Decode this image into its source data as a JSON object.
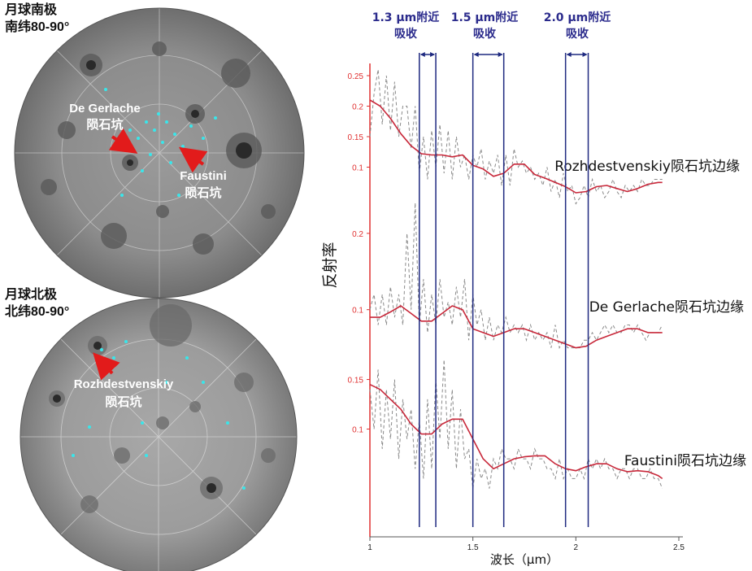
{
  "maps": {
    "south": {
      "caption_line1": "月球南极",
      "caption_line2": "南纬80-90°",
      "crater_a_line1": "De Gerlache",
      "crater_a_line2": "陨石坑",
      "crater_b_line1": "Faustini",
      "crater_b_line2": "陨石坑"
    },
    "north": {
      "caption_line1": "月球北极",
      "caption_line2": "北纬80-90°",
      "crater_line1": "Rozhdestvenskiy",
      "crater_line2": "陨石坑"
    }
  },
  "colors": {
    "axis": "#e03030",
    "smooth_line": "#c8283a",
    "raw_line": "#8a8a8a",
    "band_line": "#1f2a80",
    "band_label": "#2b2b8c",
    "arrow": "#e21b1b",
    "ice": "#39e6ea"
  },
  "absorption_bands": [
    {
      "label_line1": "1.3 μm附近",
      "label_line2": "吸收",
      "x_start": 1.24,
      "x_end": 1.32
    },
    {
      "label_line1": "1.5 μm附近",
      "label_line2": "吸收",
      "x_start": 1.5,
      "x_end": 1.65
    },
    {
      "label_line1": "2.0 μm附近",
      "label_line2": "吸收",
      "x_start": 1.95,
      "x_end": 2.06
    }
  ],
  "chart_data": {
    "type": "line",
    "xlabel": "波长（μm）",
    "ylabel": "反射率",
    "xlim": [
      1,
      2.5
    ],
    "x_ticks": [
      1,
      1.5,
      2,
      2.5
    ],
    "x_tick_labels": [
      "1",
      "1.5",
      "2",
      "2.5"
    ],
    "grid": false,
    "panels": [
      {
        "name": "Rozhdestvenskiy陨石坑边缘",
        "ylim": [
          0.07,
          0.27
        ],
        "y_ticks": [
          0.1,
          0.15,
          0.2,
          0.25
        ],
        "y_tick_labels": [
          "0.1",
          "0.15",
          "0.2",
          "0.25"
        ],
        "smooth": {
          "x": [
            1.0,
            1.05,
            1.1,
            1.15,
            1.2,
            1.25,
            1.3,
            1.35,
            1.4,
            1.45,
            1.5,
            1.55,
            1.6,
            1.65,
            1.7,
            1.75,
            1.8,
            1.85,
            1.9,
            1.95,
            2.0,
            2.05,
            2.1,
            2.15,
            2.2,
            2.25,
            2.3,
            2.35,
            2.4,
            2.42
          ],
          "y": [
            0.21,
            0.2,
            0.18,
            0.155,
            0.135,
            0.122,
            0.12,
            0.12,
            0.117,
            0.12,
            0.103,
            0.097,
            0.085,
            0.09,
            0.105,
            0.105,
            0.088,
            0.082,
            0.075,
            0.068,
            0.058,
            0.06,
            0.068,
            0.07,
            0.065,
            0.06,
            0.065,
            0.072,
            0.075,
            0.075
          ]
        },
        "raw": {
          "x": [
            1.0,
            1.02,
            1.04,
            1.06,
            1.08,
            1.1,
            1.12,
            1.14,
            1.16,
            1.18,
            1.2,
            1.22,
            1.24,
            1.26,
            1.28,
            1.3,
            1.32,
            1.34,
            1.36,
            1.38,
            1.4,
            1.42,
            1.44,
            1.46,
            1.48,
            1.5,
            1.52,
            1.54,
            1.56,
            1.58,
            1.6,
            1.62,
            1.64,
            1.66,
            1.68,
            1.7,
            1.72,
            1.74,
            1.76,
            1.78,
            1.8,
            1.82,
            1.84,
            1.86,
            1.88,
            1.9,
            1.92,
            1.94,
            1.96,
            1.98,
            2.0,
            2.02,
            2.04,
            2.06,
            2.08,
            2.1,
            2.12,
            2.14,
            2.16,
            2.18,
            2.2,
            2.22,
            2.24,
            2.26,
            2.28,
            2.3,
            2.32,
            2.34,
            2.36,
            2.38,
            2.4,
            2.42
          ],
          "y": [
            0.15,
            0.22,
            0.26,
            0.17,
            0.25,
            0.16,
            0.24,
            0.15,
            0.2,
            0.2,
            0.13,
            0.2,
            0.09,
            0.15,
            0.08,
            0.16,
            0.1,
            0.17,
            0.09,
            0.16,
            0.08,
            0.15,
            0.1,
            0.12,
            0.08,
            0.12,
            0.1,
            0.13,
            0.08,
            0.11,
            0.09,
            0.12,
            0.07,
            0.12,
            0.07,
            0.13,
            0.1,
            0.11,
            0.09,
            0.1,
            0.08,
            0.09,
            0.07,
            0.1,
            0.06,
            0.08,
            0.05,
            0.09,
            0.06,
            0.07,
            0.04,
            0.05,
            0.07,
            0.05,
            0.08,
            0.06,
            0.07,
            0.05,
            0.06,
            0.08,
            0.06,
            0.05,
            0.07,
            0.06,
            0.07,
            0.06,
            0.08,
            0.07,
            0.07,
            0.08,
            0.08,
            0.08
          ]
        }
      },
      {
        "name": "De Gerlache陨石坑边缘",
        "ylim": [
          0.04,
          0.25
        ],
        "y_ticks": [
          0.1,
          0.2
        ],
        "y_tick_labels": [
          "0.1",
          "0.2"
        ],
        "smooth": {
          "x": [
            1.0,
            1.05,
            1.1,
            1.15,
            1.2,
            1.25,
            1.3,
            1.35,
            1.4,
            1.45,
            1.5,
            1.55,
            1.6,
            1.65,
            1.7,
            1.75,
            1.8,
            1.85,
            1.9,
            1.95,
            2.0,
            2.05,
            2.1,
            2.15,
            2.2,
            2.25,
            2.3,
            2.35,
            2.4,
            2.42
          ],
          "y": [
            0.09,
            0.09,
            0.097,
            0.105,
            0.095,
            0.085,
            0.085,
            0.095,
            0.105,
            0.1,
            0.075,
            0.07,
            0.065,
            0.07,
            0.075,
            0.075,
            0.07,
            0.065,
            0.06,
            0.055,
            0.05,
            0.052,
            0.06,
            0.065,
            0.07,
            0.075,
            0.075,
            0.07,
            0.07,
            0.07
          ]
        },
        "raw": {
          "x": [
            1.0,
            1.02,
            1.04,
            1.06,
            1.08,
            1.1,
            1.12,
            1.14,
            1.16,
            1.18,
            1.2,
            1.22,
            1.24,
            1.26,
            1.28,
            1.3,
            1.32,
            1.34,
            1.36,
            1.38,
            1.4,
            1.42,
            1.44,
            1.46,
            1.48,
            1.5,
            1.52,
            1.54,
            1.56,
            1.58,
            1.6,
            1.62,
            1.64,
            1.66,
            1.68,
            1.7,
            1.72,
            1.74,
            1.76,
            1.78,
            1.8,
            1.82,
            1.84,
            1.86,
            1.88,
            1.9,
            1.92,
            1.94,
            1.96,
            1.98,
            2.0,
            2.02,
            2.04,
            2.06,
            2.08,
            2.1,
            2.12,
            2.14,
            2.16,
            2.18,
            2.2,
            2.22,
            2.24,
            2.26,
            2.28,
            2.3,
            2.32,
            2.34,
            2.36,
            2.38,
            2.4,
            2.42
          ],
          "y": [
            0.1,
            0.12,
            0.08,
            0.12,
            0.08,
            0.13,
            0.09,
            0.12,
            0.08,
            0.2,
            0.1,
            0.24,
            0.08,
            0.14,
            0.07,
            0.12,
            0.08,
            0.14,
            0.09,
            0.11,
            0.08,
            0.13,
            0.09,
            0.14,
            0.06,
            0.12,
            0.08,
            0.1,
            0.06,
            0.09,
            0.06,
            0.08,
            0.07,
            0.09,
            0.07,
            0.08,
            0.07,
            0.08,
            0.06,
            0.08,
            0.06,
            0.07,
            0.06,
            0.07,
            0.05,
            0.08,
            0.05,
            0.06,
            0.05,
            0.05,
            0.05,
            0.05,
            0.06,
            0.06,
            0.07,
            0.06,
            0.07,
            0.08,
            0.07,
            0.08,
            0.07,
            0.07,
            0.08,
            0.08,
            0.07,
            0.08,
            0.07,
            0.06,
            0.07,
            0.07,
            0.07,
            0.08
          ]
        }
      },
      {
        "name": "Faustini陨石坑边缘",
        "ylim": [
          0.02,
          0.18
        ],
        "y_ticks": [
          0.1,
          0.15
        ],
        "y_tick_labels": [
          "0.1",
          "0.15"
        ],
        "smooth": {
          "x": [
            1.0,
            1.05,
            1.1,
            1.15,
            1.2,
            1.25,
            1.3,
            1.35,
            1.4,
            1.45,
            1.5,
            1.55,
            1.6,
            1.65,
            1.7,
            1.75,
            1.8,
            1.85,
            1.9,
            1.95,
            2.0,
            2.05,
            2.1,
            2.15,
            2.2,
            2.25,
            2.3,
            2.35,
            2.4,
            2.42
          ],
          "y": [
            0.145,
            0.14,
            0.13,
            0.12,
            0.105,
            0.095,
            0.095,
            0.105,
            0.11,
            0.11,
            0.09,
            0.07,
            0.06,
            0.065,
            0.07,
            0.072,
            0.073,
            0.073,
            0.065,
            0.06,
            0.058,
            0.062,
            0.065,
            0.065,
            0.06,
            0.057,
            0.058,
            0.057,
            0.053,
            0.05
          ]
        },
        "raw": {
          "x": [
            1.0,
            1.02,
            1.04,
            1.06,
            1.08,
            1.1,
            1.12,
            1.14,
            1.16,
            1.18,
            1.2,
            1.22,
            1.24,
            1.26,
            1.28,
            1.3,
            1.32,
            1.34,
            1.36,
            1.38,
            1.4,
            1.42,
            1.44,
            1.46,
            1.48,
            1.5,
            1.52,
            1.54,
            1.56,
            1.58,
            1.6,
            1.62,
            1.64,
            1.66,
            1.68,
            1.7,
            1.72,
            1.74,
            1.76,
            1.78,
            1.8,
            1.82,
            1.84,
            1.86,
            1.88,
            1.9,
            1.92,
            1.94,
            1.96,
            1.98,
            2.0,
            2.02,
            2.04,
            2.06,
            2.08,
            2.1,
            2.12,
            2.14,
            2.16,
            2.18,
            2.2,
            2.22,
            2.24,
            2.26,
            2.28,
            2.3,
            2.32,
            2.34,
            2.36,
            2.38,
            2.4,
            2.42
          ],
          "y": [
            0.14,
            0.1,
            0.16,
            0.08,
            0.14,
            0.09,
            0.15,
            0.07,
            0.13,
            0.09,
            0.12,
            0.06,
            0.11,
            0.05,
            0.13,
            0.06,
            0.15,
            0.09,
            0.17,
            0.08,
            0.14,
            0.06,
            0.12,
            0.07,
            0.08,
            0.04,
            0.07,
            0.05,
            0.06,
            0.04,
            0.07,
            0.06,
            0.08,
            0.07,
            0.07,
            0.06,
            0.08,
            0.07,
            0.07,
            0.06,
            0.08,
            0.07,
            0.07,
            0.06,
            0.06,
            0.05,
            0.07,
            0.05,
            0.06,
            0.05,
            0.05,
            0.06,
            0.05,
            0.07,
            0.06,
            0.07,
            0.06,
            0.07,
            0.06,
            0.06,
            0.05,
            0.06,
            0.06,
            0.05,
            0.06,
            0.06,
            0.05,
            0.05,
            0.06,
            0.05,
            0.05,
            0.04
          ]
        }
      }
    ]
  }
}
